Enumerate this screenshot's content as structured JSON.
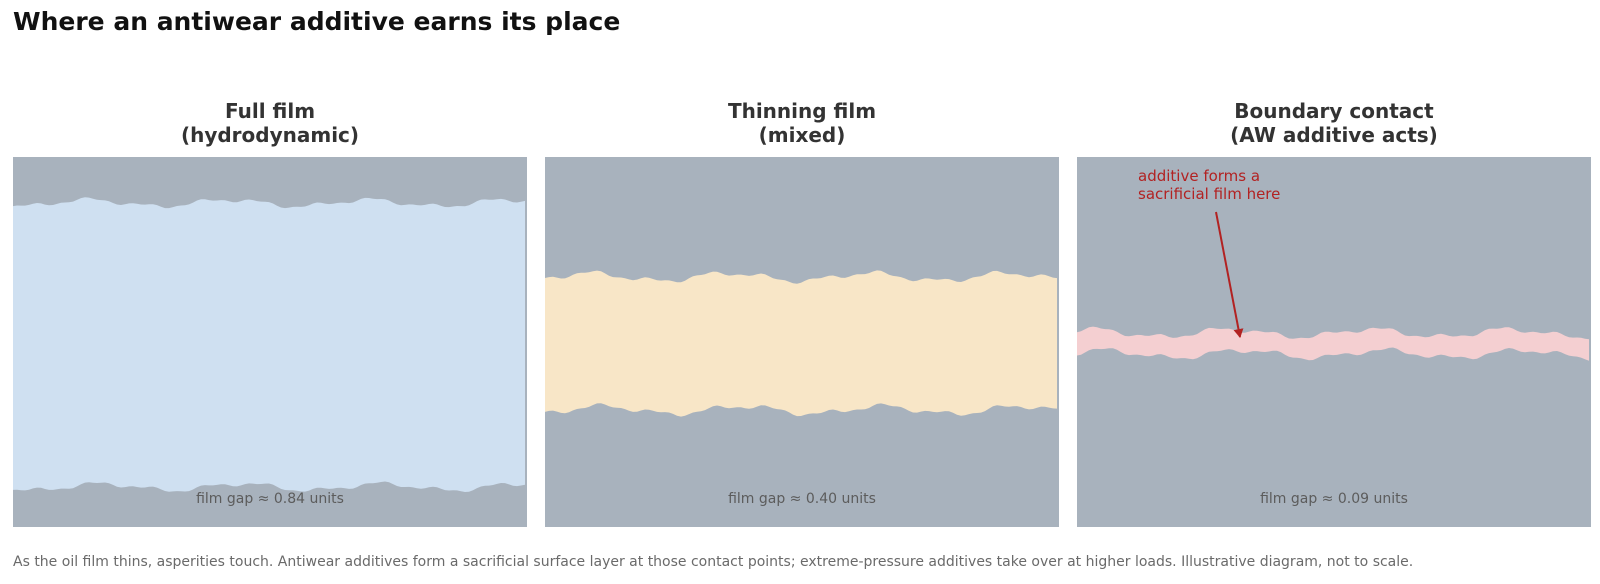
{
  "title": "Where an antiwear additive earns its place",
  "colors": {
    "metal": "#a8b2bd",
    "full_film_oil": "#cfe0f1",
    "mixed_oil": "#f8e6c7",
    "boundary_film": "#f4cfd1",
    "annotation": "#b22222"
  },
  "panels": [
    {
      "title_line1": "Full film",
      "title_line2": "(hydrodynamic)",
      "gap_label": "film gap ≈ 0.84 units",
      "film_gap": 0.84,
      "fill_key": "full_film_oil"
    },
    {
      "title_line1": "Thinning film",
      "title_line2": "(mixed)",
      "gap_label": "film gap ≈ 0.40 units",
      "film_gap": 0.4,
      "fill_key": "mixed_oil"
    },
    {
      "title_line1": "Boundary contact",
      "title_line2": "(AW additive acts)",
      "gap_label": "film gap ≈ 0.09 units",
      "film_gap": 0.09,
      "fill_key": "boundary_film",
      "annotation_line1": "additive forms a",
      "annotation_line2": "sacrificial film here"
    }
  ],
  "caption": "As the oil film thins, asperities touch. Antiwear additives form a sacrificial surface layer at those contact points; extreme-pressure additives take over at higher loads. Illustrative diagram, not to scale."
}
